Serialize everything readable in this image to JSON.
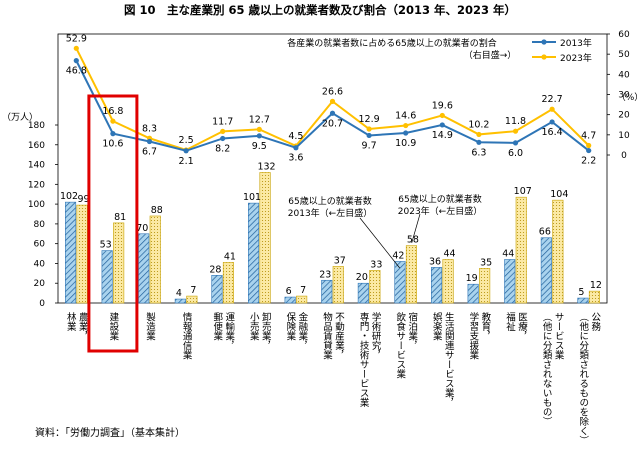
{
  "chart_data": {
    "type": "bar",
    "title": "図 10　主な産業別 65 歳以上の就業者数及び割合（2013 年、2023 年）",
    "left_axis_unit": "（万人）",
    "right_axis_unit": "（%）",
    "left_ylim": [
      0,
      180
    ],
    "left_ticks": [
      0,
      20,
      40,
      60,
      80,
      100,
      120,
      140,
      160,
      180
    ],
    "right_ylim": [
      0,
      60
    ],
    "right_ticks": [
      0,
      10,
      20,
      30,
      40,
      50,
      60
    ],
    "categories": [
      "農業，\n林業",
      "建設業",
      "製造業",
      "情報通信業",
      "運輸業，\n郵便業",
      "卸売業，\n小売業",
      "金融業，\n保険業",
      "不動産業，\n物品賃貸業",
      "学術研究，\n専門・技術サービス業",
      "宿泊業，\n飲食サービス業",
      "生活関連サービス業，\n娯楽業",
      "教育，\n学習支援業",
      "医療，\n福祉",
      "サービス業\n（他に分類されないもの）",
      "公務\n（他に分類されるものを除く）"
    ],
    "series": [
      {
        "name": "65歳以上の就業者数\n2013年（←左目盛）",
        "kind": "bar",
        "axis": "left",
        "pattern": "hatched",
        "color": "#a9d3ee",
        "values": [
          102,
          53,
          70,
          4,
          28,
          101,
          6,
          23,
          20,
          42,
          36,
          19,
          44,
          66,
          5
        ]
      },
      {
        "name": "65歳以上の就業者数\n2023年（←左目盛）",
        "kind": "bar",
        "axis": "left",
        "pattern": "dotted",
        "color": "#fbe9a4",
        "values": [
          99,
          81,
          88,
          7,
          41,
          132,
          7,
          37,
          33,
          58,
          44,
          35,
          107,
          104,
          12
        ]
      },
      {
        "name": "2013年",
        "kind": "line",
        "axis": "right",
        "color": "#2e75b6",
        "values": [
          46.8,
          10.6,
          6.7,
          2.1,
          8.2,
          9.5,
          3.6,
          20.7,
          9.7,
          10.9,
          14.9,
          6.3,
          6.0,
          16.4,
          2.2
        ]
      },
      {
        "name": "2023年",
        "kind": "line",
        "axis": "right",
        "color": "#ffc000",
        "values": [
          52.9,
          16.8,
          8.3,
          2.5,
          11.7,
          12.7,
          4.5,
          26.6,
          12.9,
          14.6,
          19.6,
          10.2,
          11.8,
          22.7,
          4.7
        ]
      }
    ],
    "legend": {
      "title": "各産業の就業者数に占める65歳以上の就業者の割合",
      "subtitle": "（右目盛→）",
      "items": [
        "2013年",
        "2023年"
      ],
      "position": "top-right"
    },
    "annotations": {
      "bar_2013": [
        "65歳以上の就業者数",
        "2013年（←左目盛）"
      ],
      "bar_2023": [
        "65歳以上の就業者数",
        "2023年（←左目盛）"
      ]
    },
    "highlighted_category": "建設業",
    "highlight_color": "#e00000"
  },
  "source": "資料：「労働力調査」（基本集計）"
}
